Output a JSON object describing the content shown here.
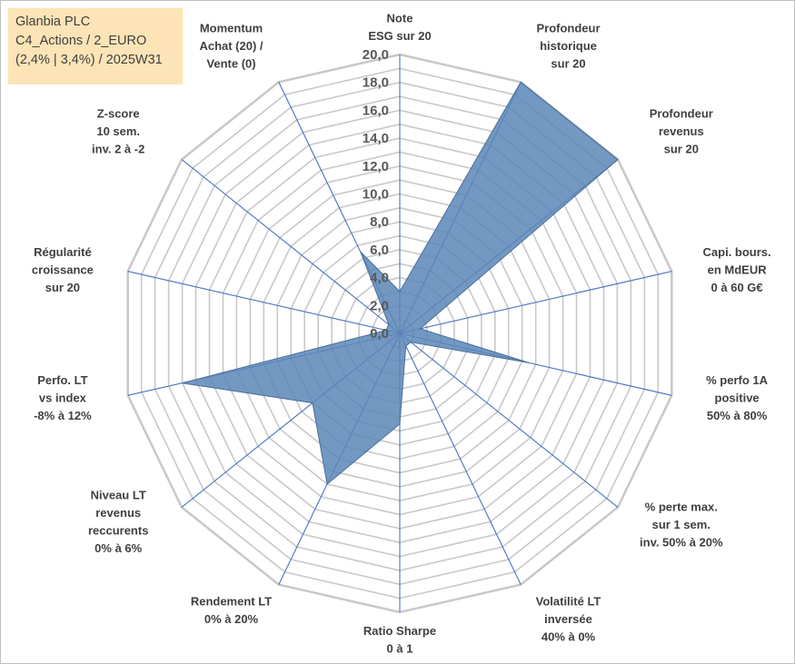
{
  "title_box": {
    "lines": [
      "Glanbia PLC",
      "C4_Actions / 2_EURO",
      "(2,4% | 3,4%) / 2025W31"
    ]
  },
  "chart_data": {
    "type": "radar",
    "axes": [
      {
        "label": [
          "Note",
          "ESG sur 20"
        ],
        "value": 3.0
      },
      {
        "label": [
          "Profondeur",
          "historique",
          "sur 20"
        ],
        "value": 20.0
      },
      {
        "label": [
          "Profondeur",
          "revenus",
          "sur 20"
        ],
        "value": 20.0
      },
      {
        "label": [
          "Capi. bours.",
          "en MdEUR",
          "0 à 60 G€"
        ],
        "value": 1.5
      },
      {
        "label": [
          "% perfo 1A",
          "positive",
          "50% à 80%"
        ],
        "value": 9.5
      },
      {
        "label": [
          "% perte max.",
          "sur 1 sem.",
          "inv. 50% à 20%"
        ],
        "value": 1.0
      },
      {
        "label": [
          "Volatilité LT",
          "inversée",
          "40% à 0%"
        ],
        "value": 1.0
      },
      {
        "label": [
          "Ratio Sharpe",
          "0 à 1"
        ],
        "value": 6.5
      },
      {
        "label": [
          "Rendement LT",
          "0% à 20%"
        ],
        "value": 12.0
      },
      {
        "label": [
          "Niveau LT",
          "revenus",
          "reccurents",
          "0% à 6%"
        ],
        "value": 8.0
      },
      {
        "label": [
          "Perfo. LT",
          "vs index",
          "-8% à 12%"
        ],
        "value": 16.0
      },
      {
        "label": [
          "Régularité",
          "croissance",
          "sur 20"
        ],
        "value": 1.0
      },
      {
        "label": [
          "Z-score",
          "10 sem.",
          "inv. 2 à -2"
        ],
        "value": 1.0
      },
      {
        "label": [
          "Momentum",
          "Achat (20) /",
          "Vente (0)"
        ],
        "value": 6.5
      }
    ],
    "ticks": [
      "0,0",
      "2,0",
      "4,0",
      "6,0",
      "8,0",
      "10,0",
      "12,0",
      "14,0",
      "16,0",
      "18,0",
      "20,0"
    ],
    "rmin": 0,
    "rmax": 20,
    "grid": true,
    "colors": {
      "fill": "#5b86b7",
      "stroke": "#4a6f9a",
      "grid": "#c8c8c8",
      "spoke": "#4a72c4"
    }
  }
}
